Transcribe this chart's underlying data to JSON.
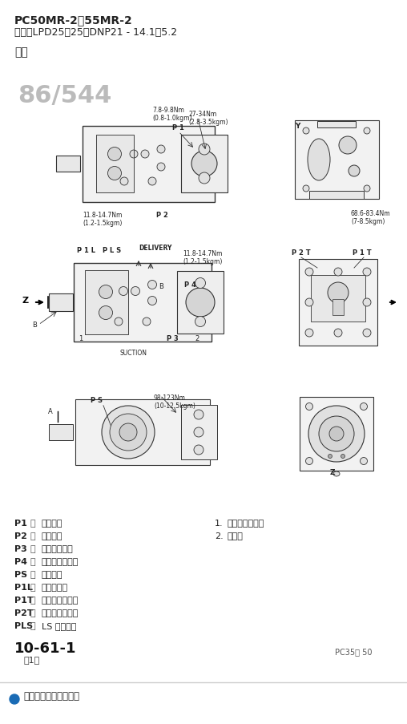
{
  "bg_color": "#ffffff",
  "title_line1": "PC50MR-2、55MR-2",
  "title_line2": "型式：LPD25＋25＋DNP21 - 14.1＋5.2",
  "section_title": "主況",
  "page_num": "86/544",
  "fig_labels": {
    "torque1": "7.8-9.8Nm\n(0.8-1.0kgm)",
    "torque2": "27-34Nm\n(2.8-3.5kgm)",
    "torque3": "11.8-14.7Nm\n(1.2-1.5kgm)",
    "torque4": "68.6-83.4Nm\n(7-8.5kgm)",
    "torque5": "11.8-14.7Nm\n(1.2-1.5kgm)",
    "torque6": "98-123Nm\n(10-12.5kgm)",
    "label_P1": "P 1",
    "label_P2": "P 2",
    "label_Y": "Y",
    "label_P2T": "P 2 T",
    "label_P1T": "P 1 T",
    "label_Z": "Z",
    "label_B": "B",
    "label_I": "1",
    "label_P3": "P 3",
    "label_2": "2",
    "label_P4": "P 4",
    "label_SUCTION": "SUCTION",
    "label_P1L": "P 1 L",
    "label_PLS": "P L S",
    "label_DELIVERY": "DELIVERY",
    "label_B2": "B",
    "label_PS": "P S",
    "label_A": "A",
    "label_Z2": "Z"
  },
  "legend_left": [
    [
      "P1",
      "：",
      "泵输油口"
    ],
    [
      "P2",
      "：",
      "泵输油口"
    ],
    [
      "P3",
      "：",
      "齿轮泵输油口"
    ],
    [
      "P4",
      "：",
      "先导泵压力输出"
    ],
    [
      "PS",
      "：",
      "泵吸油口"
    ],
    [
      "P1L",
      "：",
      "泵压力输入"
    ],
    [
      "P1T",
      "：",
      "行走偏差调整孔"
    ],
    [
      "P2T",
      "：",
      "行走偏差调整孔"
    ],
    [
      "PLS",
      "：",
      "LS 压力输入"
    ]
  ],
  "legend_right": [
    [
      "1.",
      "主況（柱塞況）"
    ],
    [
      "2.",
      "齿轮況"
    ]
  ],
  "page_code": "10-61-1",
  "page_sub": "（1）",
  "page_ref": "PC35、 50",
  "footer_text": "结构、功能和保养标准",
  "footer_dot_color": "#1a6bb5"
}
